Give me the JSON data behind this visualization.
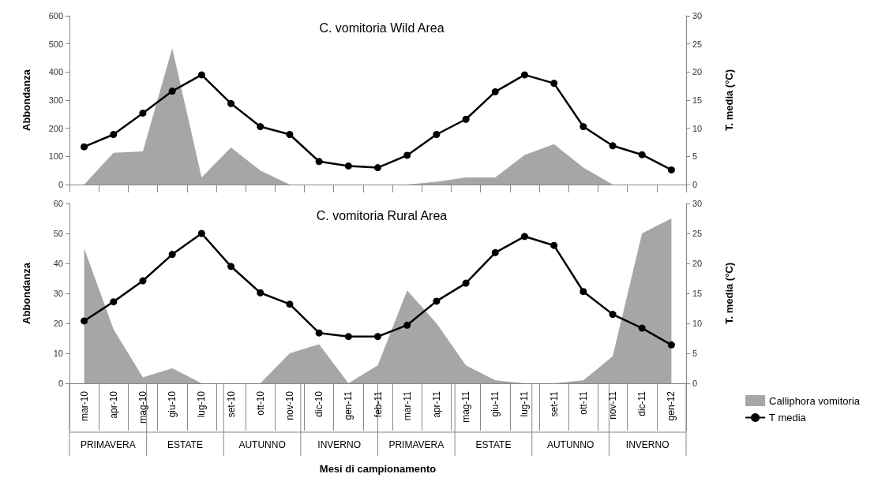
{
  "chart_data": [
    {
      "type": "area",
      "title": "C. vomitoria Wild Area",
      "ylabel": "Abbondanza",
      "y2label": "T. media (°C)",
      "categories": [
        null,
        null,
        null,
        null,
        null,
        null,
        null,
        null,
        null,
        null,
        null,
        null,
        null,
        null,
        null,
        null,
        null,
        null,
        null,
        null,
        null
      ],
      "tick_labels": "y",
      "ylim": [
        0,
        600
      ],
      "yticks": [
        0,
        100,
        200,
        300,
        400,
        500,
        600
      ],
      "y2lim": [
        0,
        30
      ],
      "y2ticks": [
        0,
        5,
        10,
        15,
        20,
        25,
        30
      ],
      "series": [
        {
          "color": "#a6a6a6",
          "values": [
            0,
            113,
            118,
            485,
            25,
            132,
            50,
            0,
            0,
            0,
            0,
            0,
            10,
            25,
            25,
            105,
            144,
            60,
            0,
            0,
            0
          ]
        },
        {
          "type": "line",
          "axis": "y2",
          "color": "#000000",
          "marker": "circle",
          "values": [
            6.7,
            8.9,
            12.7,
            16.6,
            19.5,
            14.4,
            10.3,
            8.9,
            4.1,
            3.3,
            3.0,
            5.2,
            8.9,
            11.6,
            16.5,
            19.5,
            18.0,
            10.3,
            6.9,
            5.3,
            2.6
          ]
        }
      ]
    },
    {
      "type": "area",
      "title": "C. vomitoria Rural Area",
      "ylabel": "Abbondanza",
      "y2label": "T. media (°C)",
      "xlabel": "Mesi di campionamento",
      "legend": "right",
      "categories": [
        "mar-10",
        "apr-10",
        "mag-10",
        "giu-10",
        "lug-10",
        "set-10",
        "ott-10",
        "nov-10",
        "dic-10",
        "gen-11",
        "feb-11",
        "mar-11",
        "apr-11",
        "mag-11",
        "giu-11",
        "lug-11",
        "set-11",
        "ott-11",
        "nov-11",
        "dic-11",
        "gen-12"
      ],
      "ylim": [
        0,
        60
      ],
      "yticks": [
        0,
        10,
        20,
        30,
        40,
        50,
        60
      ],
      "y2lim": [
        0,
        30
      ],
      "y2ticks": [
        0,
        5,
        10,
        15,
        20,
        25,
        30
      ],
      "annotations": [
        "PRIMAVERA",
        "ESTATE",
        "AUTUNNO",
        "INVERNO",
        "PRIMAVERA",
        "ESTATE",
        "AUTUNNO",
        "INVERNO"
      ],
      "series": [
        {
          "name": "Calliphora vomitoria",
          "color": "#a6a6a6",
          "values": [
            45,
            18,
            2,
            5,
            0,
            0,
            0,
            10,
            13,
            0,
            6,
            31,
            20,
            6,
            1,
            0,
            0,
            1,
            9,
            50,
            55
          ]
        },
        {
          "type": "line",
          "name": "T media",
          "axis": "y2",
          "color": "#000000",
          "marker": "circle",
          "values": [
            10.4,
            13.6,
            17.1,
            21.5,
            25.0,
            19.5,
            15.1,
            13.2,
            8.4,
            7.8,
            7.8,
            9.7,
            13.7,
            16.7,
            21.8,
            24.5,
            23.0,
            15.3,
            11.5,
            9.2,
            6.4
          ]
        }
      ]
    }
  ]
}
